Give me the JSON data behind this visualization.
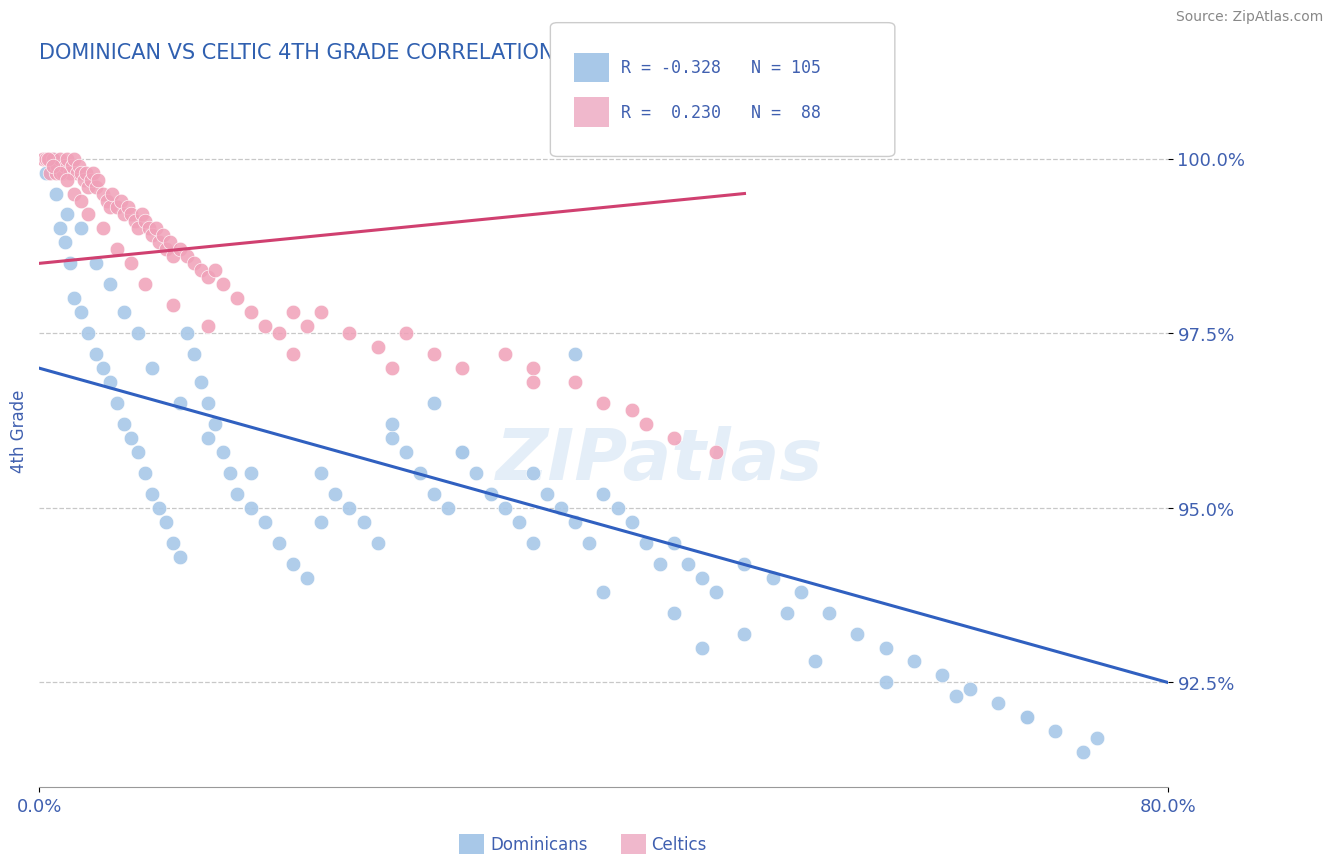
{
  "title": "DOMINICAN VS CELTIC 4TH GRADE CORRELATION CHART",
  "source": "Source: ZipAtlas.com",
  "ylabel": "4th Grade",
  "ytick_labels": [
    "92.5%",
    "95.0%",
    "97.5%",
    "100.0%"
  ],
  "ytick_values": [
    92.5,
    95.0,
    97.5,
    100.0
  ],
  "xmin": 0.0,
  "xmax": 80.0,
  "ymin": 91.0,
  "ymax": 101.2,
  "blue_R": -0.328,
  "blue_N": 105,
  "pink_R": 0.23,
  "pink_N": 88,
  "blue_color": "#a8c8e8",
  "pink_color": "#f0a0b8",
  "blue_line_color": "#3060c0",
  "pink_line_color": "#d04070",
  "legend_blue_color": "#a8c8e8",
  "legend_pink_color": "#f0b8cc",
  "title_color": "#3060b0",
  "text_color": "#4060b0",
  "watermark": "ZIPatlas",
  "blue_line_x0": 0.0,
  "blue_line_y0": 97.0,
  "blue_line_x1": 80.0,
  "blue_line_y1": 92.5,
  "pink_line_x0": 0.0,
  "pink_line_y0": 98.5,
  "pink_line_x1": 50.0,
  "pink_line_y1": 99.5,
  "blue_scatter_x": [
    0.5,
    1.0,
    1.2,
    1.5,
    1.8,
    2.0,
    2.2,
    2.5,
    3.0,
    3.5,
    4.0,
    4.5,
    5.0,
    5.5,
    6.0,
    6.5,
    7.0,
    7.5,
    8.0,
    8.5,
    9.0,
    9.5,
    10.0,
    10.5,
    11.0,
    11.5,
    12.0,
    12.5,
    13.0,
    13.5,
    14.0,
    15.0,
    16.0,
    17.0,
    18.0,
    19.0,
    20.0,
    21.0,
    22.0,
    23.0,
    24.0,
    25.0,
    26.0,
    27.0,
    28.0,
    29.0,
    30.0,
    31.0,
    32.0,
    33.0,
    34.0,
    35.0,
    36.0,
    37.0,
    38.0,
    39.0,
    40.0,
    41.0,
    42.0,
    43.0,
    44.0,
    45.0,
    46.0,
    47.0,
    48.0,
    50.0,
    52.0,
    54.0,
    56.0,
    58.0,
    60.0,
    62.0,
    64.0,
    66.0,
    68.0,
    70.0,
    72.0,
    74.0,
    3.0,
    4.0,
    5.0,
    6.0,
    7.0,
    8.0,
    10.0,
    12.0,
    15.0,
    20.0,
    25.0,
    30.0,
    35.0,
    40.0,
    45.0,
    50.0,
    55.0,
    60.0,
    65.0,
    70.0,
    75.0,
    47.0,
    53.0,
    38.0,
    28.0
  ],
  "blue_scatter_y": [
    99.8,
    100.0,
    99.5,
    99.0,
    98.8,
    99.2,
    98.5,
    98.0,
    97.8,
    97.5,
    97.2,
    97.0,
    96.8,
    96.5,
    96.2,
    96.0,
    95.8,
    95.5,
    95.2,
    95.0,
    94.8,
    94.5,
    94.3,
    97.5,
    97.2,
    96.8,
    96.5,
    96.2,
    95.8,
    95.5,
    95.2,
    95.0,
    94.8,
    94.5,
    94.2,
    94.0,
    95.5,
    95.2,
    95.0,
    94.8,
    94.5,
    96.0,
    95.8,
    95.5,
    95.2,
    95.0,
    95.8,
    95.5,
    95.2,
    95.0,
    94.8,
    95.5,
    95.2,
    95.0,
    94.8,
    94.5,
    95.2,
    95.0,
    94.8,
    94.5,
    94.2,
    94.5,
    94.2,
    94.0,
    93.8,
    94.2,
    94.0,
    93.8,
    93.5,
    93.2,
    93.0,
    92.8,
    92.6,
    92.4,
    92.2,
    92.0,
    91.8,
    91.5,
    99.0,
    98.5,
    98.2,
    97.8,
    97.5,
    97.0,
    96.5,
    96.0,
    95.5,
    94.8,
    96.2,
    95.8,
    94.5,
    93.8,
    93.5,
    93.2,
    92.8,
    92.5,
    92.3,
    92.0,
    91.7,
    93.0,
    93.5,
    97.2,
    96.5
  ],
  "pink_scatter_x": [
    0.3,
    0.5,
    0.7,
    0.8,
    1.0,
    1.2,
    1.3,
    1.5,
    1.7,
    1.8,
    2.0,
    2.2,
    2.3,
    2.5,
    2.7,
    2.8,
    3.0,
    3.2,
    3.3,
    3.5,
    3.7,
    3.8,
    4.0,
    4.2,
    4.5,
    4.8,
    5.0,
    5.2,
    5.5,
    5.8,
    6.0,
    6.3,
    6.5,
    6.8,
    7.0,
    7.3,
    7.5,
    7.8,
    8.0,
    8.3,
    8.5,
    8.8,
    9.0,
    9.3,
    9.5,
    10.0,
    10.5,
    11.0,
    11.5,
    12.0,
    12.5,
    13.0,
    14.0,
    15.0,
    16.0,
    17.0,
    18.0,
    19.0,
    20.0,
    22.0,
    24.0,
    26.0,
    28.0,
    30.0,
    33.0,
    35.0,
    38.0,
    40.0,
    43.0,
    45.0,
    0.6,
    1.0,
    1.5,
    2.0,
    2.5,
    3.0,
    3.5,
    4.5,
    5.5,
    6.5,
    7.5,
    9.5,
    12.0,
    18.0,
    25.0,
    35.0,
    42.0,
    48.0
  ],
  "pink_scatter_y": [
    100.0,
    100.0,
    100.0,
    99.8,
    100.0,
    99.8,
    99.9,
    100.0,
    99.8,
    99.9,
    100.0,
    99.8,
    99.9,
    100.0,
    99.8,
    99.9,
    99.8,
    99.7,
    99.8,
    99.6,
    99.7,
    99.8,
    99.6,
    99.7,
    99.5,
    99.4,
    99.3,
    99.5,
    99.3,
    99.4,
    99.2,
    99.3,
    99.2,
    99.1,
    99.0,
    99.2,
    99.1,
    99.0,
    98.9,
    99.0,
    98.8,
    98.9,
    98.7,
    98.8,
    98.6,
    98.7,
    98.6,
    98.5,
    98.4,
    98.3,
    98.4,
    98.2,
    98.0,
    97.8,
    97.6,
    97.5,
    97.8,
    97.6,
    97.8,
    97.5,
    97.3,
    97.5,
    97.2,
    97.0,
    97.2,
    97.0,
    96.8,
    96.5,
    96.2,
    96.0,
    100.0,
    99.9,
    99.8,
    99.7,
    99.5,
    99.4,
    99.2,
    99.0,
    98.7,
    98.5,
    98.2,
    97.9,
    97.6,
    97.2,
    97.0,
    96.8,
    96.4,
    95.8
  ]
}
